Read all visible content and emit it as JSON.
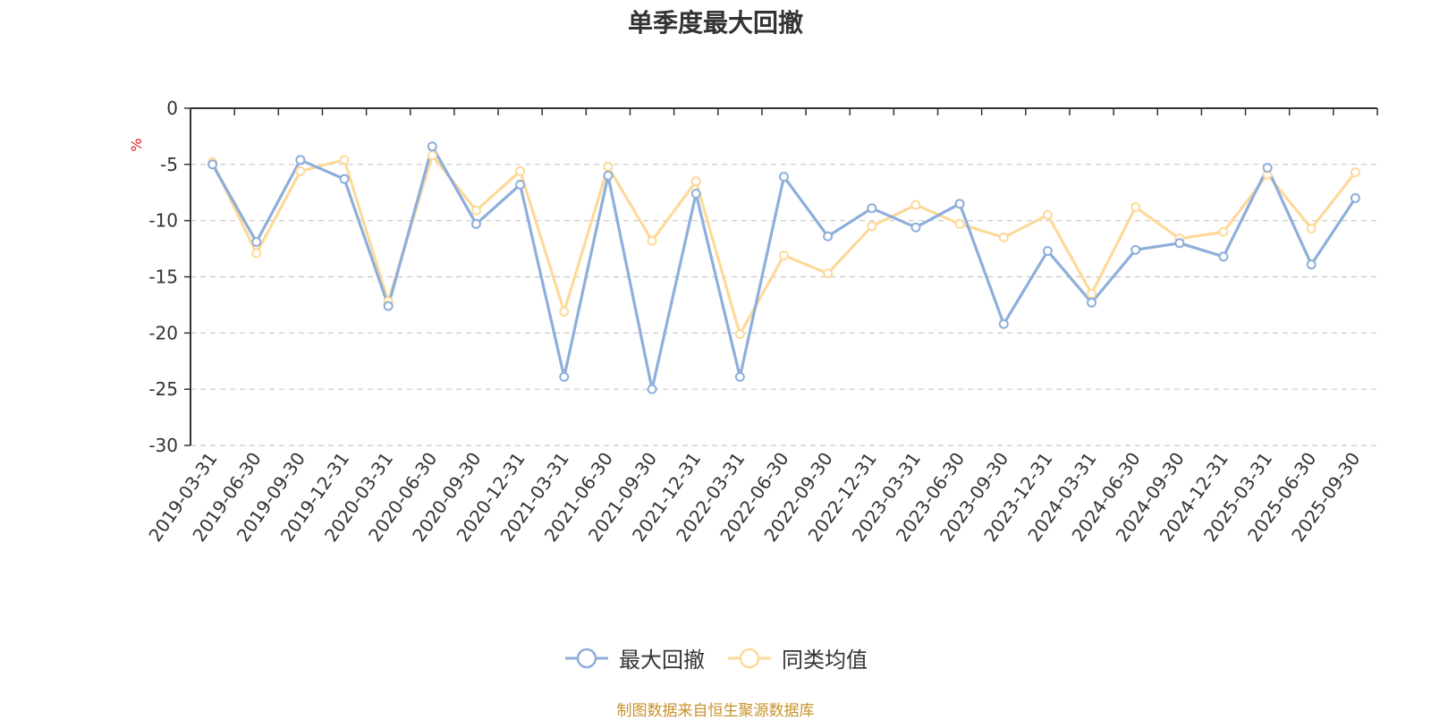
{
  "chart_data": {
    "type": "line",
    "title": "单季度最大回撤",
    "ylabel": "%",
    "xlabel": "",
    "ylim": [
      -30,
      0
    ],
    "yticks": [
      0,
      -5,
      -10,
      -15,
      -20,
      -25,
      -30
    ],
    "grid": true,
    "legend_position": "bottom",
    "x": [
      "2019-03-31",
      "2019-06-30",
      "2019-09-30",
      "2019-12-31",
      "2020-03-31",
      "2020-06-30",
      "2020-09-30",
      "2020-12-31",
      "2021-03-31",
      "2021-06-30",
      "2021-09-30",
      "2021-12-31",
      "2022-03-31",
      "2022-06-30",
      "2022-09-30",
      "2022-12-31",
      "2023-03-31",
      "2023-06-30",
      "2023-09-30",
      "2023-12-31",
      "2024-03-31",
      "2024-06-30",
      "2024-09-30",
      "2024-12-31",
      "2025-03-31",
      "2025-06-30",
      "2025-09-30"
    ],
    "series": [
      {
        "name": "最大回撤",
        "color": "#8eaedb",
        "values": [
          -5.0,
          -11.9,
          -4.6,
          -6.3,
          -17.6,
          -3.4,
          -10.3,
          -6.8,
          -23.9,
          -6.0,
          -25.0,
          -7.6,
          -23.9,
          -6.1,
          -11.4,
          -8.9,
          -10.6,
          -8.5,
          -19.2,
          -12.7,
          -17.3,
          -12.6,
          -12.0,
          -13.2,
          -5.3,
          -13.9,
          -8.0
        ]
      },
      {
        "name": "同类均值",
        "color": "#fdd99a",
        "values": [
          -4.8,
          -12.9,
          -5.6,
          -4.6,
          -17.2,
          -4.2,
          -9.1,
          -5.6,
          -18.1,
          -5.2,
          -11.8,
          -6.5,
          -20.1,
          -13.1,
          -14.7,
          -10.5,
          -8.6,
          -10.3,
          -11.5,
          -9.5,
          -16.5,
          -8.8,
          -11.6,
          -11.0,
          -5.9,
          -10.7,
          -5.7
        ]
      }
    ]
  },
  "source_text": "制图数据来自恒生聚源数据库"
}
